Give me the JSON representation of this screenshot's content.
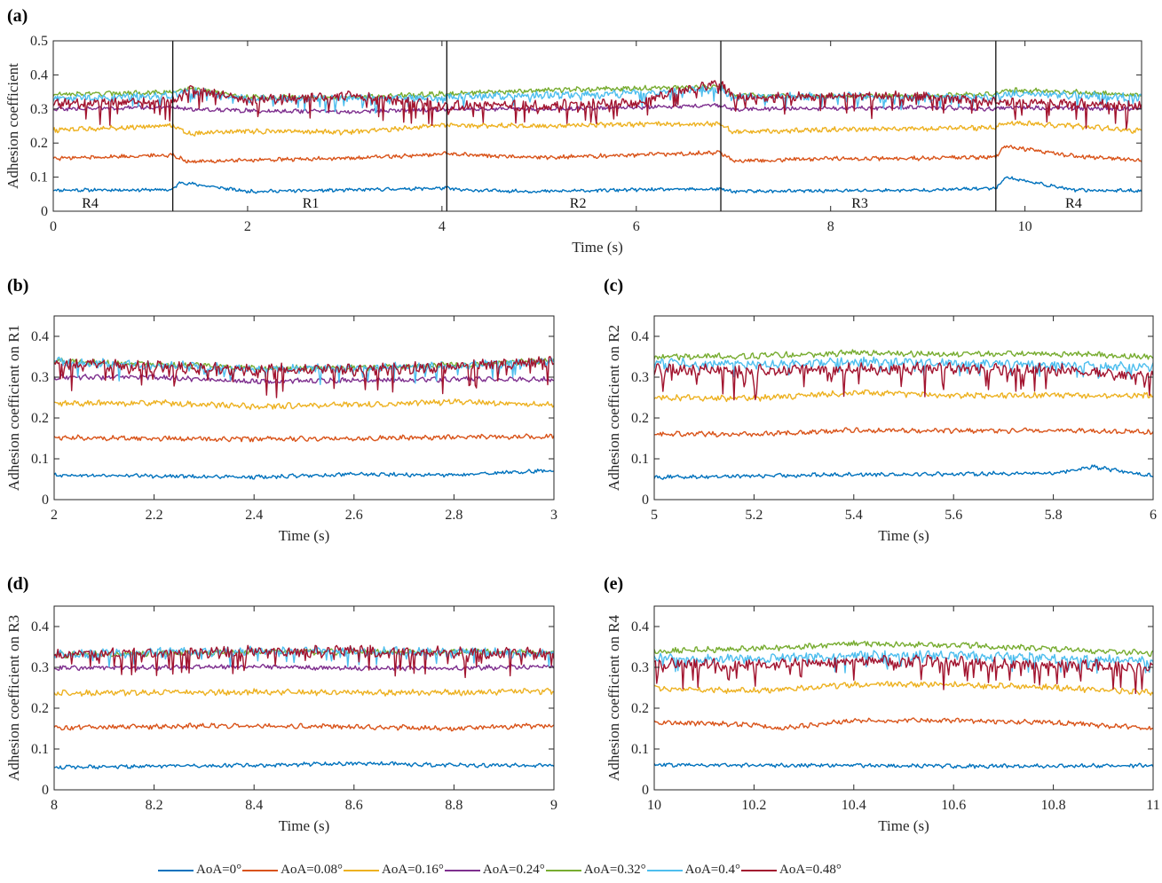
{
  "figure": {
    "legend": [
      {
        "label": "AoA=0°",
        "color": "#0072BD"
      },
      {
        "label": "AoA=0.08°",
        "color": "#D95319"
      },
      {
        "label": "AoA=0.16°",
        "color": "#EDB120"
      },
      {
        "label": "AoA=0.24°",
        "color": "#7E2F8E"
      },
      {
        "label": "AoA=0.32°",
        "color": "#77AC30"
      },
      {
        "label": "AoA=0.4°",
        "color": "#4DBEEE"
      },
      {
        "label": "AoA=0.48°",
        "color": "#A2142F"
      }
    ]
  },
  "chart_data": [
    {
      "panel": "(a)",
      "type": "line",
      "xlabel": "Time (s)",
      "ylabel": "Adhesion coefficient",
      "xlim": [
        0,
        11.2
      ],
      "ylim": [
        0,
        0.5
      ],
      "xticks": [
        0,
        2,
        4,
        6,
        8,
        10
      ],
      "yticks": [
        0,
        0.1,
        0.2,
        0.3,
        0.4,
        0.5
      ],
      "ytick_labels": [
        "0",
        "0.1",
        "0.2",
        "0.3",
        "0.4",
        "0.5"
      ],
      "boundaries": [
        1.23,
        4.05,
        6.87,
        9.7
      ],
      "region_labels": [
        {
          "text": "R4",
          "x": 0.38
        },
        {
          "text": "R1",
          "x": 2.65
        },
        {
          "text": "R2",
          "x": 5.4
        },
        {
          "text": "R3",
          "x": 8.3
        },
        {
          "text": "R4",
          "x": 10.5
        }
      ],
      "series": [
        {
          "name": "AoA=0°",
          "color": "#0072BD",
          "x": [
            0,
            1.23,
            1.3,
            2,
            3,
            4.05,
            4.2,
            5,
            6,
            6.87,
            7,
            8,
            9,
            9.7,
            9.8,
            10.5,
            11.2
          ],
          "y": [
            0.062,
            0.063,
            0.085,
            0.058,
            0.062,
            0.068,
            0.062,
            0.058,
            0.063,
            0.065,
            0.058,
            0.06,
            0.062,
            0.068,
            0.1,
            0.062,
            0.06
          ]
        },
        {
          "name": "AoA=0.08°",
          "color": "#D95319",
          "x": [
            0,
            1.23,
            1.4,
            2,
            3,
            4.05,
            5,
            6,
            6.87,
            7,
            8,
            9,
            9.7,
            9.8,
            10.5,
            11.2
          ],
          "y": [
            0.155,
            0.165,
            0.145,
            0.15,
            0.155,
            0.168,
            0.158,
            0.165,
            0.172,
            0.148,
            0.155,
            0.155,
            0.16,
            0.19,
            0.162,
            0.15
          ]
        },
        {
          "name": "AoA=0.16°",
          "color": "#EDB120",
          "x": [
            0,
            1.23,
            1.4,
            2,
            3,
            4.05,
            5,
            6,
            6.87,
            7,
            8,
            9,
            9.7,
            9.8,
            10.5,
            11.2
          ],
          "y": [
            0.238,
            0.252,
            0.228,
            0.235,
            0.232,
            0.252,
            0.25,
            0.255,
            0.255,
            0.232,
            0.24,
            0.242,
            0.245,
            0.26,
            0.25,
            0.235
          ]
        },
        {
          "name": "AoA=0.24°",
          "color": "#7E2F8E",
          "x": [
            0,
            1.23,
            1.4,
            2,
            3,
            4.05,
            5,
            6,
            6.87,
            7,
            8,
            9,
            9.7,
            9.8,
            10.5,
            11.2
          ],
          "y": [
            0.3,
            0.305,
            0.3,
            0.295,
            0.292,
            0.3,
            0.3,
            0.305,
            0.31,
            0.3,
            0.302,
            0.305,
            0.3,
            0.305,
            0.302,
            0.3
          ]
        },
        {
          "name": "AoA=0.32°",
          "color": "#77AC30",
          "x": [
            0,
            1.23,
            1.4,
            2,
            3,
            4.05,
            5,
            6,
            6.87,
            7,
            8,
            9,
            9.7,
            9.8,
            10.5,
            11.2
          ],
          "y": [
            0.342,
            0.35,
            0.36,
            0.335,
            0.333,
            0.345,
            0.355,
            0.36,
            0.365,
            0.34,
            0.338,
            0.338,
            0.345,
            0.355,
            0.35,
            0.34
          ]
        },
        {
          "name": "AoA=0.4°",
          "color": "#4DBEEE",
          "x": [
            0,
            1.23,
            1.4,
            2,
            3,
            4.05,
            5,
            6,
            6.87,
            7,
            8,
            9,
            9.7,
            9.8,
            10.5,
            11.2
          ],
          "y": [
            0.33,
            0.34,
            0.355,
            0.33,
            0.332,
            0.335,
            0.34,
            0.345,
            0.36,
            0.335,
            0.338,
            0.336,
            0.335,
            0.345,
            0.34,
            0.335
          ]
        },
        {
          "name": "AoA=0.48°",
          "color": "#A2142F",
          "x": [
            0,
            1.23,
            1.4,
            2,
            3,
            4.05,
            5,
            6,
            6.87,
            7,
            8,
            9,
            9.7,
            9.8,
            10.5,
            11.2
          ],
          "y": [
            0.315,
            0.32,
            0.36,
            0.325,
            0.34,
            0.31,
            0.31,
            0.32,
            0.38,
            0.33,
            0.34,
            0.335,
            0.32,
            0.32,
            0.315,
            0.31
          ]
        }
      ]
    },
    {
      "panel": "(b)",
      "type": "line",
      "xlabel": "Time (s)",
      "ylabel": "Adhesion coefficient on R1",
      "xlim": [
        2,
        3
      ],
      "ylim": [
        0,
        0.45
      ],
      "xticks": [
        2,
        2.2,
        2.4,
        2.6,
        2.8,
        3
      ],
      "yticks": [
        0,
        0.1,
        0.2,
        0.3,
        0.4
      ],
      "ytick_labels": [
        "0",
        "0.1",
        "0.2",
        "0.3",
        "0.4"
      ],
      "series": [
        {
          "name": "AoA=0°",
          "color": "#0072BD",
          "x": [
            2,
            2.2,
            2.4,
            2.6,
            2.8,
            3
          ],
          "y": [
            0.06,
            0.058,
            0.055,
            0.062,
            0.06,
            0.072
          ]
        },
        {
          "name": "AoA=0.08°",
          "color": "#D95319",
          "x": [
            2,
            2.2,
            2.4,
            2.6,
            2.8,
            3
          ],
          "y": [
            0.152,
            0.15,
            0.148,
            0.15,
            0.153,
            0.155
          ]
        },
        {
          "name": "AoA=0.16°",
          "color": "#EDB120",
          "x": [
            2,
            2.2,
            2.4,
            2.6,
            2.8,
            3
          ],
          "y": [
            0.235,
            0.237,
            0.228,
            0.232,
            0.24,
            0.232
          ]
        },
        {
          "name": "AoA=0.24°",
          "color": "#7E2F8E",
          "x": [
            2,
            2.2,
            2.4,
            2.6,
            2.8,
            3
          ],
          "y": [
            0.3,
            0.3,
            0.29,
            0.292,
            0.295,
            0.295
          ]
        },
        {
          "name": "AoA=0.32°",
          "color": "#77AC30",
          "x": [
            2,
            2.2,
            2.4,
            2.6,
            2.8,
            3
          ],
          "y": [
            0.34,
            0.332,
            0.322,
            0.322,
            0.33,
            0.34
          ]
        },
        {
          "name": "AoA=0.4°",
          "color": "#4DBEEE",
          "x": [
            2,
            2.2,
            2.4,
            2.6,
            2.8,
            3
          ],
          "y": [
            0.338,
            0.33,
            0.32,
            0.322,
            0.328,
            0.338
          ]
        },
        {
          "name": "AoA=0.48°",
          "color": "#A2142F",
          "x": [
            2,
            2.2,
            2.4,
            2.6,
            2.8,
            3
          ],
          "y": [
            0.335,
            0.325,
            0.318,
            0.318,
            0.325,
            0.34
          ]
        }
      ]
    },
    {
      "panel": "(c)",
      "type": "line",
      "xlabel": "Time (s)",
      "ylabel": "Adhesion coefficient on R2",
      "xlim": [
        5,
        6
      ],
      "ylim": [
        0,
        0.45
      ],
      "xticks": [
        5,
        5.2,
        5.4,
        5.6,
        5.8,
        6
      ],
      "yticks": [
        0,
        0.1,
        0.2,
        0.3,
        0.4
      ],
      "ytick_labels": [
        "0",
        "0.1",
        "0.2",
        "0.3",
        "0.4"
      ],
      "series": [
        {
          "name": "AoA=0°",
          "color": "#0072BD",
          "x": [
            5,
            5.2,
            5.4,
            5.6,
            5.8,
            5.88,
            6
          ],
          "y": [
            0.055,
            0.058,
            0.062,
            0.063,
            0.065,
            0.08,
            0.058
          ]
        },
        {
          "name": "AoA=0.08°",
          "color": "#D95319",
          "x": [
            5,
            5.2,
            5.4,
            5.6,
            5.8,
            6
          ],
          "y": [
            0.162,
            0.16,
            0.17,
            0.168,
            0.17,
            0.165
          ]
        },
        {
          "name": "AoA=0.16°",
          "color": "#EDB120",
          "x": [
            5,
            5.2,
            5.4,
            5.6,
            5.8,
            6
          ],
          "y": [
            0.25,
            0.248,
            0.262,
            0.255,
            0.255,
            0.255
          ]
        },
        {
          "name": "AoA=0.32°",
          "color": "#77AC30",
          "x": [
            5,
            5.2,
            5.4,
            5.6,
            5.8,
            6
          ],
          "y": [
            0.35,
            0.352,
            0.36,
            0.356,
            0.358,
            0.35
          ]
        },
        {
          "name": "AoA=0.4°",
          "color": "#4DBEEE",
          "x": [
            5,
            5.2,
            5.4,
            5.6,
            5.8,
            6
          ],
          "y": [
            0.335,
            0.332,
            0.338,
            0.335,
            0.33,
            0.325
          ]
        },
        {
          "name": "AoA=0.48°",
          "color": "#A2142F",
          "x": [
            5,
            5.2,
            5.4,
            5.6,
            5.8,
            6
          ],
          "y": [
            0.32,
            0.315,
            0.32,
            0.32,
            0.318,
            0.3
          ]
        }
      ]
    },
    {
      "panel": "(d)",
      "type": "line",
      "xlabel": "Time (s)",
      "ylabel": "Adhesion coefficient on R3",
      "xlim": [
        8,
        9
      ],
      "ylim": [
        0,
        0.45
      ],
      "xticks": [
        8,
        8.2,
        8.4,
        8.6,
        8.8,
        9
      ],
      "yticks": [
        0,
        0.1,
        0.2,
        0.3,
        0.4
      ],
      "ytick_labels": [
        "0",
        "0.1",
        "0.2",
        "0.3",
        "0.4"
      ],
      "series": [
        {
          "name": "AoA=0°",
          "color": "#0072BD",
          "x": [
            8,
            8.2,
            8.4,
            8.6,
            8.8,
            9
          ],
          "y": [
            0.055,
            0.058,
            0.06,
            0.065,
            0.06,
            0.06
          ]
        },
        {
          "name": "AoA=0.08°",
          "color": "#D95319",
          "x": [
            8,
            8.2,
            8.4,
            8.6,
            8.8,
            9
          ],
          "y": [
            0.152,
            0.155,
            0.158,
            0.155,
            0.15,
            0.158
          ]
        },
        {
          "name": "AoA=0.16°",
          "color": "#EDB120",
          "x": [
            8,
            8.2,
            8.4,
            8.6,
            8.8,
            9
          ],
          "y": [
            0.237,
            0.238,
            0.24,
            0.238,
            0.238,
            0.242
          ]
        },
        {
          "name": "AoA=0.24°",
          "color": "#7E2F8E",
          "x": [
            8,
            8.2,
            8.4,
            8.6,
            8.8,
            9
          ],
          "y": [
            0.298,
            0.3,
            0.302,
            0.298,
            0.298,
            0.302
          ]
        },
        {
          "name": "AoA=0.32°",
          "color": "#77AC30",
          "x": [
            8,
            8.2,
            8.4,
            8.6,
            8.8,
            9
          ],
          "y": [
            0.33,
            0.335,
            0.338,
            0.338,
            0.338,
            0.335
          ]
        },
        {
          "name": "AoA=0.4°",
          "color": "#4DBEEE",
          "x": [
            8,
            8.2,
            8.4,
            8.6,
            8.8,
            9
          ],
          "y": [
            0.332,
            0.336,
            0.34,
            0.34,
            0.338,
            0.335
          ]
        },
        {
          "name": "AoA=0.48°",
          "color": "#A2142F",
          "x": [
            8,
            8.2,
            8.4,
            8.6,
            8.8,
            9
          ],
          "y": [
            0.33,
            0.335,
            0.338,
            0.34,
            0.336,
            0.332
          ]
        }
      ]
    },
    {
      "panel": "(e)",
      "type": "line",
      "xlabel": "Time (s)",
      "ylabel": "Adhesion coefficient on R4",
      "xlim": [
        10,
        11
      ],
      "ylim": [
        0,
        0.45
      ],
      "xticks": [
        10,
        10.2,
        10.4,
        10.6,
        10.8,
        11
      ],
      "yticks": [
        0,
        0.1,
        0.2,
        0.3,
        0.4
      ],
      "ytick_labels": [
        "0",
        "0.1",
        "0.2",
        "0.3",
        "0.4"
      ],
      "series": [
        {
          "name": "AoA=0°",
          "color": "#0072BD",
          "x": [
            10,
            10.2,
            10.4,
            10.6,
            10.8,
            11
          ],
          "y": [
            0.062,
            0.06,
            0.06,
            0.058,
            0.058,
            0.06
          ]
        },
        {
          "name": "AoA=0.08°",
          "color": "#D95319",
          "x": [
            10,
            10.2,
            10.25,
            10.4,
            10.6,
            10.8,
            11
          ],
          "y": [
            0.165,
            0.16,
            0.15,
            0.17,
            0.17,
            0.165,
            0.15
          ]
        },
        {
          "name": "AoA=0.16°",
          "color": "#EDB120",
          "x": [
            10,
            10.2,
            10.4,
            10.6,
            10.8,
            11
          ],
          "y": [
            0.25,
            0.242,
            0.258,
            0.258,
            0.25,
            0.238
          ]
        },
        {
          "name": "AoA=0.32°",
          "color": "#77AC30",
          "x": [
            10,
            10.2,
            10.4,
            10.6,
            10.8,
            11
          ],
          "y": [
            0.34,
            0.345,
            0.358,
            0.355,
            0.345,
            0.335
          ]
        },
        {
          "name": "AoA=0.4°",
          "color": "#4DBEEE",
          "x": [
            10,
            10.2,
            10.4,
            10.6,
            10.8,
            11
          ],
          "y": [
            0.325,
            0.32,
            0.33,
            0.33,
            0.322,
            0.315
          ]
        },
        {
          "name": "AoA=0.48°",
          "color": "#A2142F",
          "x": [
            10,
            10.2,
            10.4,
            10.6,
            10.8,
            11
          ],
          "y": [
            0.31,
            0.305,
            0.315,
            0.315,
            0.305,
            0.3
          ]
        }
      ]
    }
  ]
}
